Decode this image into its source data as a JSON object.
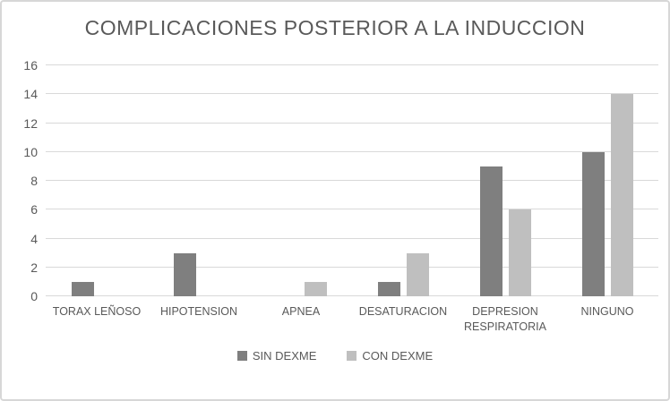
{
  "chart_data": {
    "type": "bar",
    "title": "COMPLICACIONES POSTERIOR A LA INDUCCION",
    "categories": [
      "TORAX LEÑOSO",
      "HIPOTENSION",
      "APNEA",
      "DESATURACION",
      "DEPRESION RESPIRATORIA",
      "NINGUNO"
    ],
    "series": [
      {
        "name": "SIN DEXME",
        "color": "#7f7f7f",
        "values": [
          1,
          3,
          0,
          1,
          9,
          10
        ]
      },
      {
        "name": "CON DEXME",
        "color": "#bfbfbf",
        "values": [
          0,
          0,
          1,
          3,
          6,
          14
        ]
      }
    ],
    "xlabel": "",
    "ylabel": "",
    "y_axis": {
      "min": 0,
      "max": 16,
      "step": 2
    },
    "grid": true,
    "legend_position": "bottom",
    "colors": {
      "text": "#595959",
      "gridline": "#d9d9d9",
      "border": "#d7d7d7",
      "background": "#ffffff"
    }
  }
}
